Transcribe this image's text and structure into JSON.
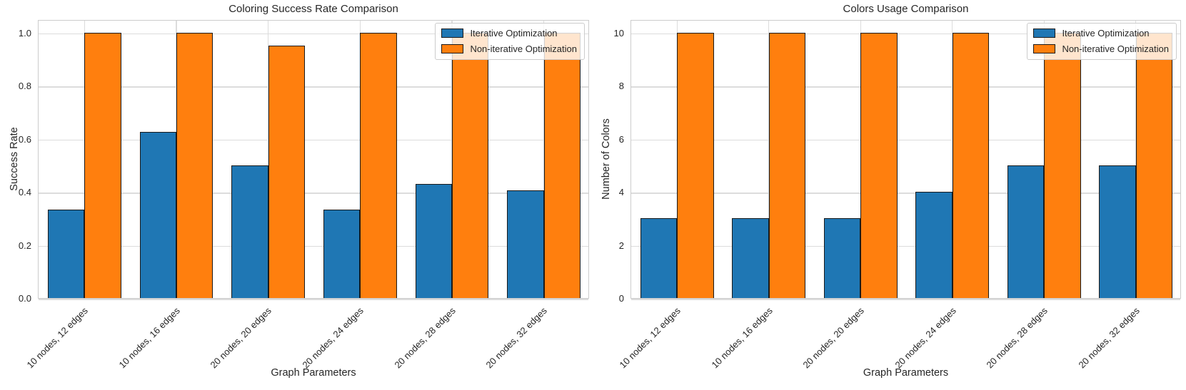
{
  "figure": {
    "background": "#ffffff"
  },
  "theme": {
    "series_blue": "#1f77b4",
    "series_orange": "#ff7f0e",
    "bar_edge": "#1a1a1a",
    "grid_color": "#dcdcdc",
    "spine_color": "#cccccc",
    "text_color": "#262626",
    "legend_bg": "rgba(255,255,255,0.8)",
    "legend_border": "#cccccc"
  },
  "chart_data": [
    {
      "type": "bar",
      "title": "Coloring Success Rate Comparison",
      "xlabel": "Graph Parameters",
      "ylabel": "Success Rate",
      "categories": [
        "10 nodes, 12 edges",
        "10 nodes, 16 edges",
        "20 nodes, 20 edges",
        "20 nodes, 24 edges",
        "20 nodes, 28 edges",
        "20 nodes, 32 edges"
      ],
      "series": [
        {
          "name": "Iterative Optimization",
          "color": "#1f77b4",
          "values": [
            0.333,
            0.625,
            0.5,
            0.333,
            0.43,
            0.405
          ]
        },
        {
          "name": "Non-iterative Optimization",
          "color": "#ff7f0e",
          "values": [
            1.0,
            1.0,
            0.95,
            1.0,
            1.0,
            1.0
          ]
        }
      ],
      "ylim": [
        0,
        1.05
      ],
      "yticks": [
        0,
        0.2,
        0.4,
        0.6,
        0.8,
        1.0
      ],
      "ytick_labels": [
        "0.0",
        "0.2",
        "0.4",
        "0.6",
        "0.8",
        "1.0"
      ],
      "grid": true,
      "legend_position": "upper right"
    },
    {
      "type": "bar",
      "title": "Colors Usage Comparison",
      "xlabel": "Graph Parameters",
      "ylabel": "Number of Colors",
      "categories": [
        "10 nodes, 12 edges",
        "10 nodes, 16 edges",
        "20 nodes, 20 edges",
        "20 nodes, 24 edges",
        "20 nodes, 28 edges",
        "20 nodes, 32 edges"
      ],
      "series": [
        {
          "name": "Iterative Optimization",
          "color": "#1f77b4",
          "values": [
            3,
            3,
            3,
            4,
            5,
            5
          ]
        },
        {
          "name": "Non-iterative Optimization",
          "color": "#ff7f0e",
          "values": [
            10,
            10,
            10,
            10,
            10,
            10
          ]
        }
      ],
      "ylim": [
        0,
        10.5
      ],
      "yticks": [
        0,
        2,
        4,
        6,
        8,
        10
      ],
      "ytick_labels": [
        "0",
        "2",
        "4",
        "6",
        "8",
        "10"
      ],
      "grid": true,
      "legend_position": "upper right"
    }
  ]
}
